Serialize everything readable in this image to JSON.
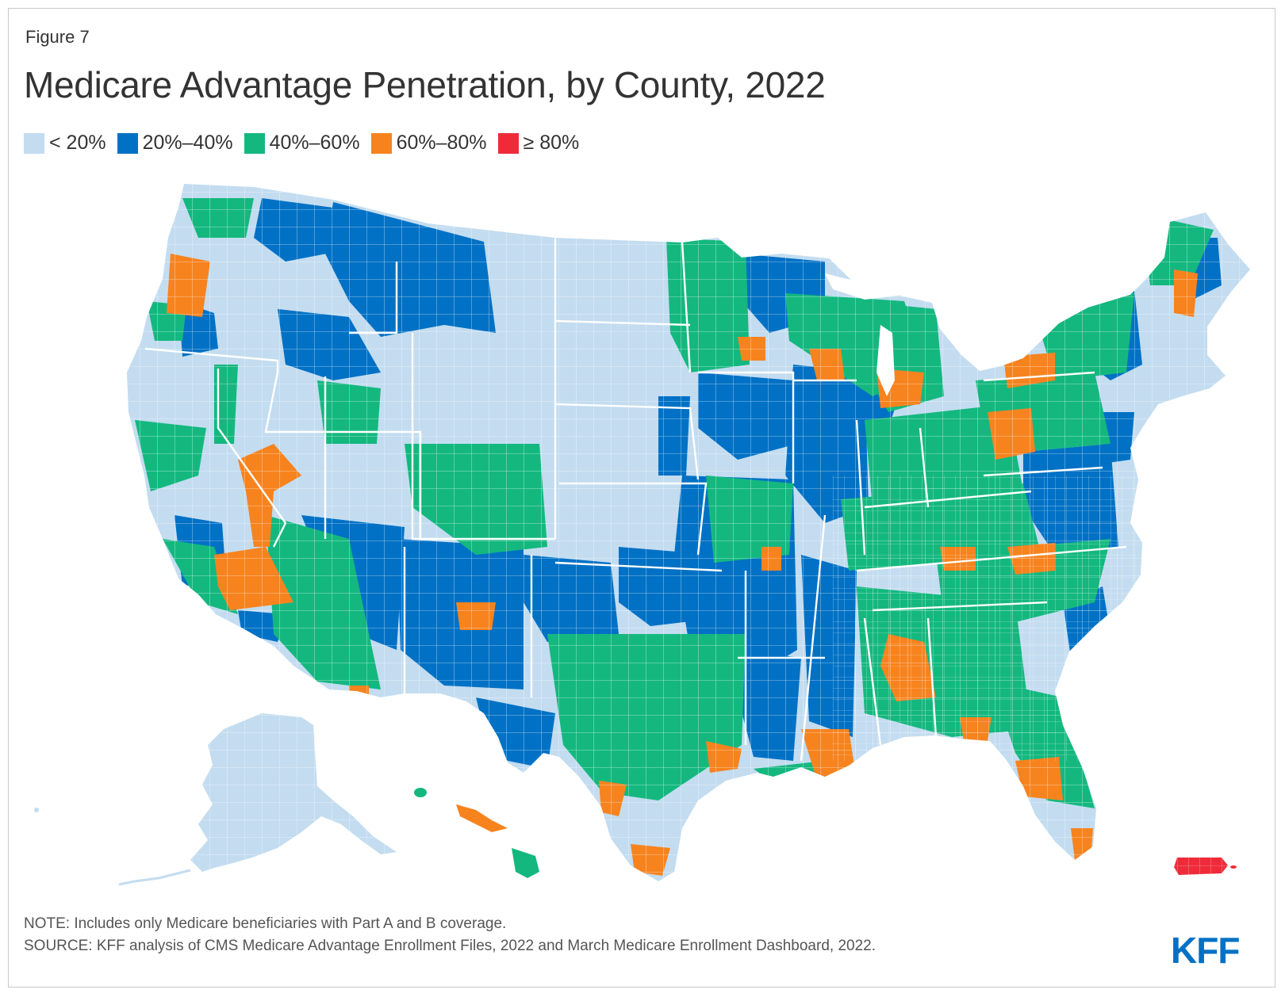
{
  "figure_label": "Figure 7",
  "title": "Medicare Advantage Penetration, by County, 2022",
  "legend": [
    {
      "label": "< 20%",
      "color": "#c3dcf0"
    },
    {
      "label": "20%–40%",
      "color": "#0071c5"
    },
    {
      "label": "40%–60%",
      "color": "#14b87f"
    },
    {
      "label": "60%–80%",
      "color": "#f7831e"
    },
    {
      "label": "≥ 80%",
      "color": "#ef2b3a"
    }
  ],
  "note": "NOTE: Includes only Medicare beneficiaries with Part A and B coverage.",
  "source": "SOURCE: KFF analysis of CMS Medicare Advantage Enrollment Files, 2022 and March Medicare Enrollment Dashboard, 2022.",
  "logo": "KFF"
}
